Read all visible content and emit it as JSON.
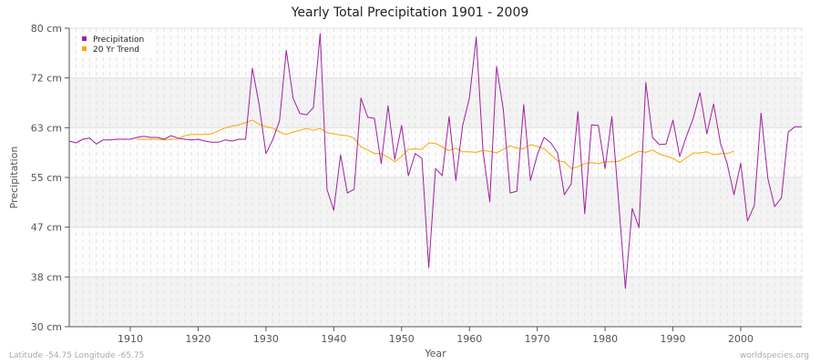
{
  "chart_data": {
    "type": "line",
    "title": "Yearly Total Precipitation 1901 - 2009",
    "xlabel": "Year",
    "ylabel": "Precipitation",
    "xlim": [
      1901,
      2009
    ],
    "ylim": [
      30,
      80
    ],
    "yticks": [
      80,
      71.67,
      63.33,
      55,
      46.67,
      38.33,
      30
    ],
    "ytick_labels": [
      "80 cm",
      "72 cm",
      "63 cm",
      "55 cm",
      "47 cm",
      "38 cm",
      "30 cm"
    ],
    "xticks": [
      1910,
      1920,
      1930,
      1940,
      1950,
      1960,
      1970,
      1980,
      1990,
      2000
    ],
    "xtick_labels": [
      "1910",
      "1920",
      "1930",
      "1940",
      "1950",
      "1960",
      "1970",
      "1980",
      "1990",
      "2000"
    ],
    "grid": true,
    "legend_position": "top-left",
    "series": [
      {
        "name": "Precipitation",
        "color": "#a020a0",
        "x_start": 1901,
        "values": [
          61.1,
          60.8,
          61.4,
          61.6,
          60.6,
          61.3,
          61.3,
          61.4,
          61.4,
          61.4,
          61.7,
          61.9,
          61.7,
          61.7,
          61.4,
          62.0,
          61.6,
          61.4,
          61.3,
          61.4,
          61.1,
          60.9,
          60.9,
          61.3,
          61.1,
          61.4,
          61.4,
          73.3,
          67.2,
          59.0,
          61.3,
          64.5,
          76.3,
          68.3,
          65.7,
          65.5,
          66.7,
          79.1,
          53.0,
          49.5,
          58.8,
          52.4,
          53.0,
          68.3,
          65.1,
          64.9,
          57.3,
          67.0,
          58.0,
          63.7,
          55.3,
          59.0,
          58.2,
          39.9,
          56.5,
          55.3,
          65.2,
          54.5,
          63.7,
          68.3,
          78.5,
          59.4,
          50.9,
          73.6,
          66.4,
          52.4,
          52.7,
          67.2,
          54.5,
          58.8,
          61.7,
          60.8,
          59.1,
          52.1,
          53.9,
          66.0,
          48.9,
          63.8,
          63.7,
          56.5,
          65.2,
          50.9,
          36.4,
          49.8,
          46.6,
          70.9,
          61.7,
          60.5,
          60.6,
          64.6,
          58.5,
          61.9,
          64.9,
          69.2,
          62.3,
          67.3,
          60.8,
          57.3,
          52.1,
          57.4,
          47.7,
          50.3,
          65.8,
          54.8,
          50.1,
          51.6,
          62.6,
          63.5,
          63.5
        ]
      },
      {
        "name": "20 Yr Trend",
        "color": "#ffa500",
        "x_start": 1911,
        "values": [
          61.4,
          61.4,
          61.4,
          61.4,
          61.3,
          61.4,
          61.4,
          62.0,
          62.2,
          62.2,
          62.2,
          62.3,
          62.8,
          63.3,
          63.6,
          63.8,
          64.2,
          64.6,
          63.9,
          63.5,
          63.3,
          62.6,
          62.2,
          62.6,
          62.9,
          63.2,
          62.9,
          63.2,
          62.5,
          62.3,
          62.1,
          62.0,
          61.6,
          60.1,
          59.6,
          59.0,
          59.0,
          58.4,
          57.6,
          58.5,
          59.7,
          59.8,
          59.7,
          60.8,
          60.7,
          60.1,
          59.5,
          59.9,
          59.3,
          59.3,
          59.2,
          59.5,
          59.4,
          59.1,
          59.7,
          60.3,
          59.9,
          59.8,
          60.5,
          60.2,
          59.8,
          58.8,
          57.8,
          57.6,
          56.5,
          56.8,
          57.3,
          57.5,
          57.3,
          57.6,
          57.6,
          57.7,
          58.3,
          58.8,
          59.4,
          59.2,
          59.6,
          58.9,
          58.6,
          58.2,
          57.5,
          58.3,
          59.1,
          59.1,
          59.3,
          58.8,
          59.0,
          59.0,
          59.4
        ]
      }
    ]
  },
  "footer": {
    "location": "Latitude -54.75 Longitude -65.75",
    "site": "worldspecies.org"
  }
}
